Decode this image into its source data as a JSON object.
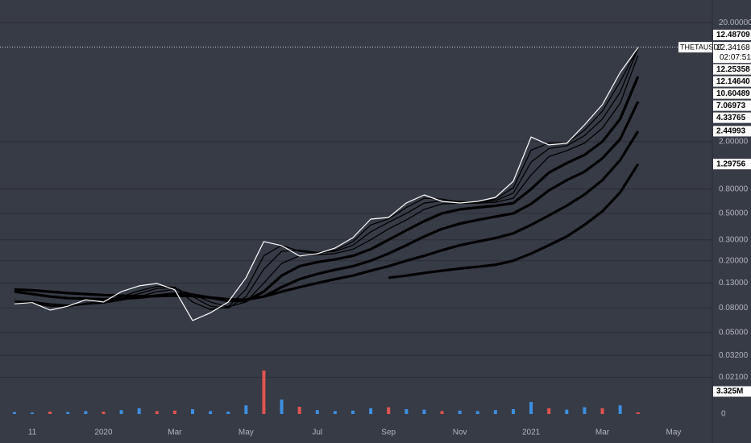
{
  "chart_data": {
    "type": "line",
    "log_scale": true,
    "grid": true,
    "categories": [
      null,
      "11",
      null,
      null,
      null,
      "2020",
      null,
      null,
      null,
      "Mar",
      null,
      null,
      null,
      "May",
      null,
      null,
      null,
      "Jul",
      null,
      null,
      null,
      "Sep",
      null,
      null,
      null,
      "Nov",
      null,
      null,
      null,
      "2021",
      null,
      null,
      null,
      "Mar",
      null,
      null,
      null,
      "May"
    ],
    "ylim": [
      0.015,
      31
    ],
    "yticks": [
      {
        "value": 20,
        "label": "20.00000"
      },
      {
        "value": 2,
        "label": "2.00000"
      },
      {
        "value": 0.8,
        "label": "0.80000"
      },
      {
        "value": 0.5,
        "label": "0.50000"
      },
      {
        "value": 0.3,
        "label": "0.30000"
      },
      {
        "value": 0.2,
        "label": "0.20000"
      },
      {
        "value": 0.13,
        "label": "0.13000"
      },
      {
        "value": 0.08,
        "label": "0.08000"
      },
      {
        "value": 0.05,
        "label": "0.05000"
      },
      {
        "value": 0.032,
        "label": "0.03200"
      },
      {
        "value": 0.021,
        "label": "0.02100"
      }
    ],
    "high": 12.48709,
    "countdown": "02:07:51",
    "series": [
      {
        "name": "THETAUSDT",
        "color": "#ffffff",
        "style": "price",
        "values": [
          0.087,
          0.089,
          0.077,
          0.083,
          0.094,
          0.09,
          0.11,
          0.123,
          0.129,
          0.114,
          0.063,
          0.073,
          0.09,
          0.144,
          0.29,
          0.268,
          0.219,
          0.229,
          0.256,
          0.313,
          0.448,
          0.462,
          0.611,
          0.714,
          0.631,
          0.611,
          0.631,
          0.682,
          0.931,
          2.19,
          1.88,
          1.94,
          2.77,
          4.09,
          7.63,
          12.34168,
          null,
          null
        ]
      },
      {
        "color": "#000000",
        "style": "thin",
        "values": [
          0.088,
          0.088,
          0.083,
          0.082,
          0.088,
          0.091,
          0.1,
          0.112,
          0.122,
          0.12,
          0.09,
          0.078,
          0.082,
          0.115,
          0.22,
          0.27,
          0.24,
          0.23,
          0.245,
          0.29,
          0.4,
          0.45,
          0.56,
          0.67,
          0.66,
          0.62,
          0.62,
          0.66,
          0.82,
          1.7,
          1.95,
          1.95,
          2.5,
          3.6,
          6.4,
          12.25358,
          null,
          null
        ]
      },
      {
        "color": "#000000",
        "style": "thin",
        "values": [
          0.09,
          0.089,
          0.085,
          0.083,
          0.086,
          0.089,
          0.096,
          0.106,
          0.117,
          0.119,
          0.1,
          0.083,
          0.08,
          0.1,
          0.17,
          0.24,
          0.245,
          0.235,
          0.24,
          0.27,
          0.35,
          0.42,
          0.5,
          0.61,
          0.64,
          0.63,
          0.62,
          0.64,
          0.74,
          1.35,
          1.75,
          1.85,
          2.25,
          3.1,
          5.2,
          12.1464,
          null,
          null
        ],
        "value_labels": [
          null,
          null,
          null,
          null,
          null,
          null,
          null,
          null,
          null,
          null,
          null,
          null,
          null,
          null,
          null,
          null,
          null,
          null,
          null,
          null,
          null,
          null,
          null,
          null,
          null,
          null,
          null,
          null,
          null,
          null,
          null,
          null,
          null,
          null,
          null,
          "12.14640",
          null,
          null
        ]
      },
      {
        "color": "#000000",
        "style": "thin",
        "values": [
          0.092,
          0.091,
          0.087,
          0.085,
          0.086,
          0.088,
          0.093,
          0.1,
          0.11,
          0.115,
          0.105,
          0.09,
          0.082,
          0.09,
          0.13,
          0.19,
          0.22,
          0.225,
          0.23,
          0.25,
          0.3,
          0.37,
          0.44,
          0.54,
          0.6,
          0.61,
          0.61,
          0.62,
          0.67,
          1.05,
          1.5,
          1.68,
          1.95,
          2.6,
          4.2,
          10.60489,
          null,
          null
        ]
      },
      {
        "color": "#000000",
        "style": "thick",
        "values": [
          0.11,
          0.105,
          0.1,
          0.097,
          0.096,
          0.095,
          0.096,
          0.098,
          0.102,
          0.106,
          0.104,
          0.098,
          0.092,
          0.092,
          0.11,
          0.15,
          0.18,
          0.195,
          0.205,
          0.22,
          0.25,
          0.3,
          0.36,
          0.43,
          0.5,
          0.54,
          0.56,
          0.58,
          0.61,
          0.8,
          1.1,
          1.32,
          1.55,
          2.0,
          3.1,
          7.06973,
          null,
          null
        ]
      },
      {
        "color": "#000000",
        "style": "thick",
        "values": [
          0.115,
          0.113,
          0.11,
          0.107,
          0.105,
          0.103,
          0.102,
          0.101,
          0.101,
          0.102,
          0.101,
          0.098,
          0.095,
          0.094,
          0.1,
          0.12,
          0.14,
          0.155,
          0.168,
          0.18,
          0.2,
          0.23,
          0.27,
          0.32,
          0.37,
          0.41,
          0.44,
          0.47,
          0.5,
          0.6,
          0.78,
          0.95,
          1.12,
          1.45,
          2.1,
          4.33765,
          null,
          null
        ]
      },
      {
        "color": "#000000",
        "style": "thick",
        "values": [
          null,
          null,
          null,
          null,
          null,
          null,
          null,
          null,
          null,
          null,
          null,
          null,
          null,
          0.095,
          0.1,
          0.11,
          0.12,
          0.13,
          0.14,
          0.15,
          0.165,
          0.18,
          0.2,
          0.22,
          0.245,
          0.27,
          0.29,
          0.31,
          0.34,
          0.4,
          0.48,
          0.58,
          0.72,
          0.95,
          1.4,
          2.44993,
          null,
          null
        ]
      },
      {
        "color": "#000000",
        "style": "thick",
        "values": [
          null,
          null,
          null,
          null,
          null,
          null,
          null,
          null,
          null,
          null,
          null,
          null,
          null,
          null,
          null,
          null,
          null,
          null,
          null,
          null,
          null,
          0.144,
          0.15,
          0.158,
          0.165,
          0.172,
          0.178,
          0.185,
          0.2,
          0.23,
          0.27,
          0.32,
          0.4,
          0.52,
          0.75,
          1.29756,
          null,
          null
        ]
      }
    ],
    "volume": [
      4,
      3,
      5,
      4,
      6,
      5,
      8,
      12,
      6,
      7,
      10,
      6,
      5,
      18,
      90,
      30,
      15,
      8,
      6,
      7,
      12,
      14,
      10,
      9,
      6,
      7,
      6,
      8,
      10,
      25,
      12,
      9,
      14,
      12,
      18,
      3.325,
      null,
      null
    ],
    "volume_colors": [
      "#3d8fe0",
      "#3d8fe0",
      "#e0544f",
      "#3d8fe0",
      "#3d8fe0",
      "#e0544f",
      "#3d8fe0",
      "#3d8fe0",
      "#e0544f",
      "#e0544f",
      "#3d8fe0",
      "#3d8fe0",
      "#3d8fe0",
      "#3d8fe0",
      "#e0544f",
      "#3d8fe0",
      "#e0544f",
      "#3d8fe0",
      "#3d8fe0",
      "#3d8fe0",
      "#3d8fe0",
      "#e0544f",
      "#3d8fe0",
      "#3d8fe0",
      "#e0544f",
      "#3d8fe0",
      "#3d8fe0",
      "#3d8fe0",
      "#3d8fe0",
      "#3d8fe0",
      "#e0544f",
      "#3d8fe0",
      "#3d8fe0",
      "#e0544f",
      "#3d8fe0",
      "#e0544f",
      null,
      null
    ],
    "volume_value_labels": [
      null,
      null,
      null,
      null,
      null,
      null,
      null,
      null,
      null,
      null,
      null,
      null,
      null,
      null,
      null,
      null,
      null,
      null,
      null,
      null,
      null,
      null,
      null,
      null,
      null,
      null,
      null,
      null,
      null,
      null,
      null,
      null,
      null,
      null,
      null,
      "3.325M",
      null,
      null
    ],
    "volume_ylim": [
      0,
      140
    ],
    "volume_yticks": [
      0
    ]
  }
}
